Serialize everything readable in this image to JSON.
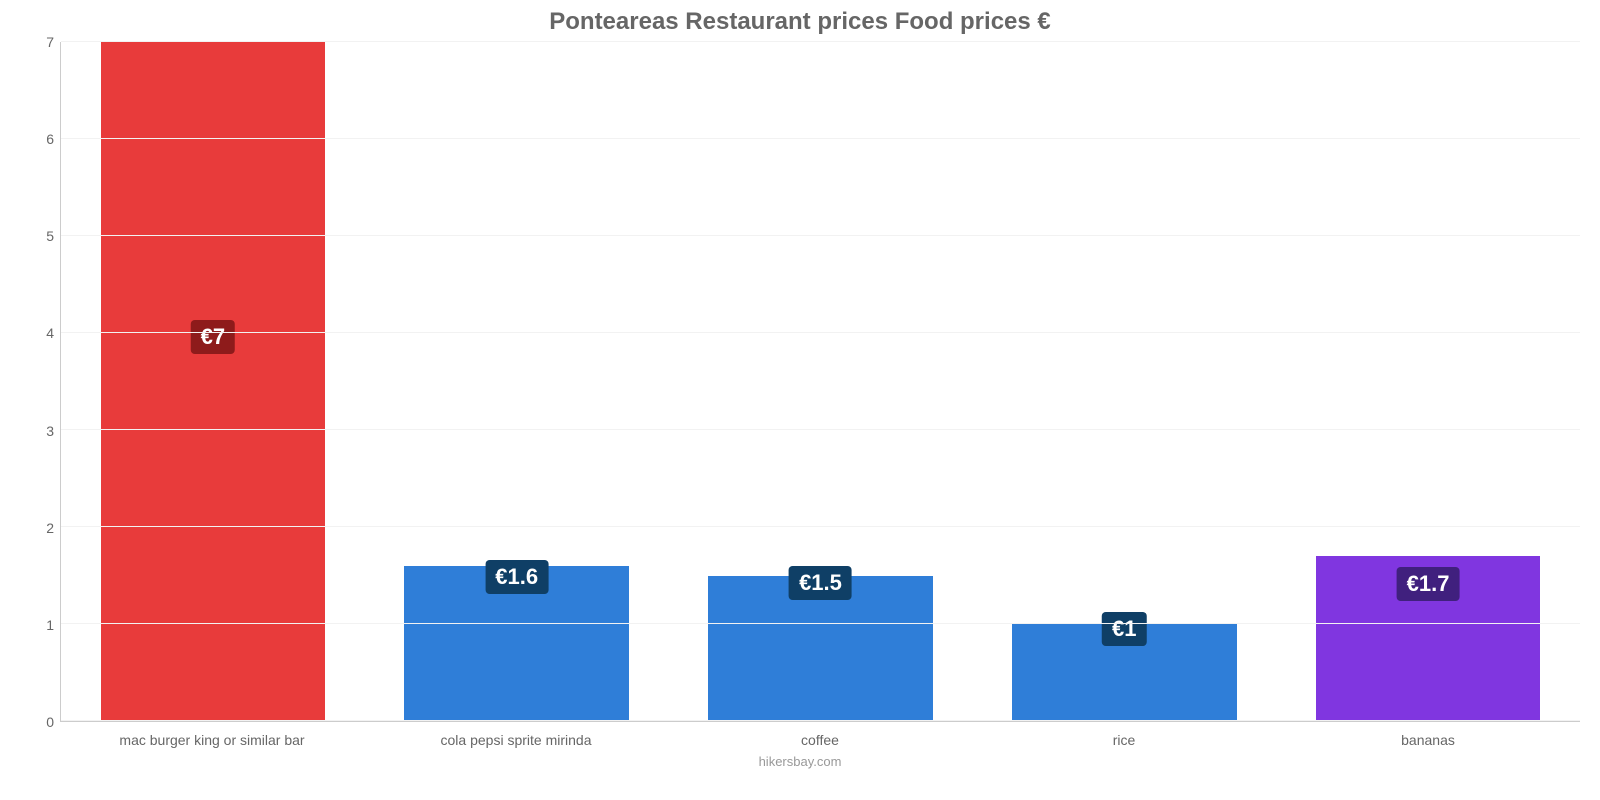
{
  "chart": {
    "type": "bar",
    "title": "Ponteareas Restaurant prices Food prices €",
    "title_fontsize": 24,
    "title_color": "#666666",
    "background_color": "#ffffff",
    "axis_line_color": "#cccccc",
    "grid_color": "#f2f2f2",
    "tick_font_color": "#666666",
    "tick_fontsize": 14,
    "xlabel_fontsize": 14,
    "xlabel_color": "#666666",
    "bar_width_pct": 74,
    "label_fontsize": 22,
    "label_color": "#ffffff",
    "ylim": [
      0,
      7
    ],
    "ytick_step": 1,
    "yticks": [
      "0",
      "1",
      "2",
      "3",
      "4",
      "5",
      "6",
      "7"
    ],
    "categories": [
      "mac burger king or similar bar",
      "cola pepsi sprite mirinda",
      "coffee",
      "rice",
      "bananas"
    ],
    "values": [
      7,
      1.6,
      1.5,
      1,
      1.7
    ],
    "value_labels": [
      "€7",
      "€1.6",
      "€1.5",
      "€1",
      "€1.7"
    ],
    "bar_colors": [
      "#e83b3b",
      "#2f7ed8",
      "#2f7ed8",
      "#2f7ed8",
      "#8036e0"
    ],
    "label_bg_colors": [
      "#8e1b1b",
      "#0f3f66",
      "#0f3f66",
      "#0f3f66",
      "#40207e"
    ],
    "label_bottom_pct": [
      54,
      82,
      83,
      77,
      73
    ],
    "credit": "hikersbay.com",
    "credit_color": "#999999",
    "credit_fontsize": 13
  }
}
